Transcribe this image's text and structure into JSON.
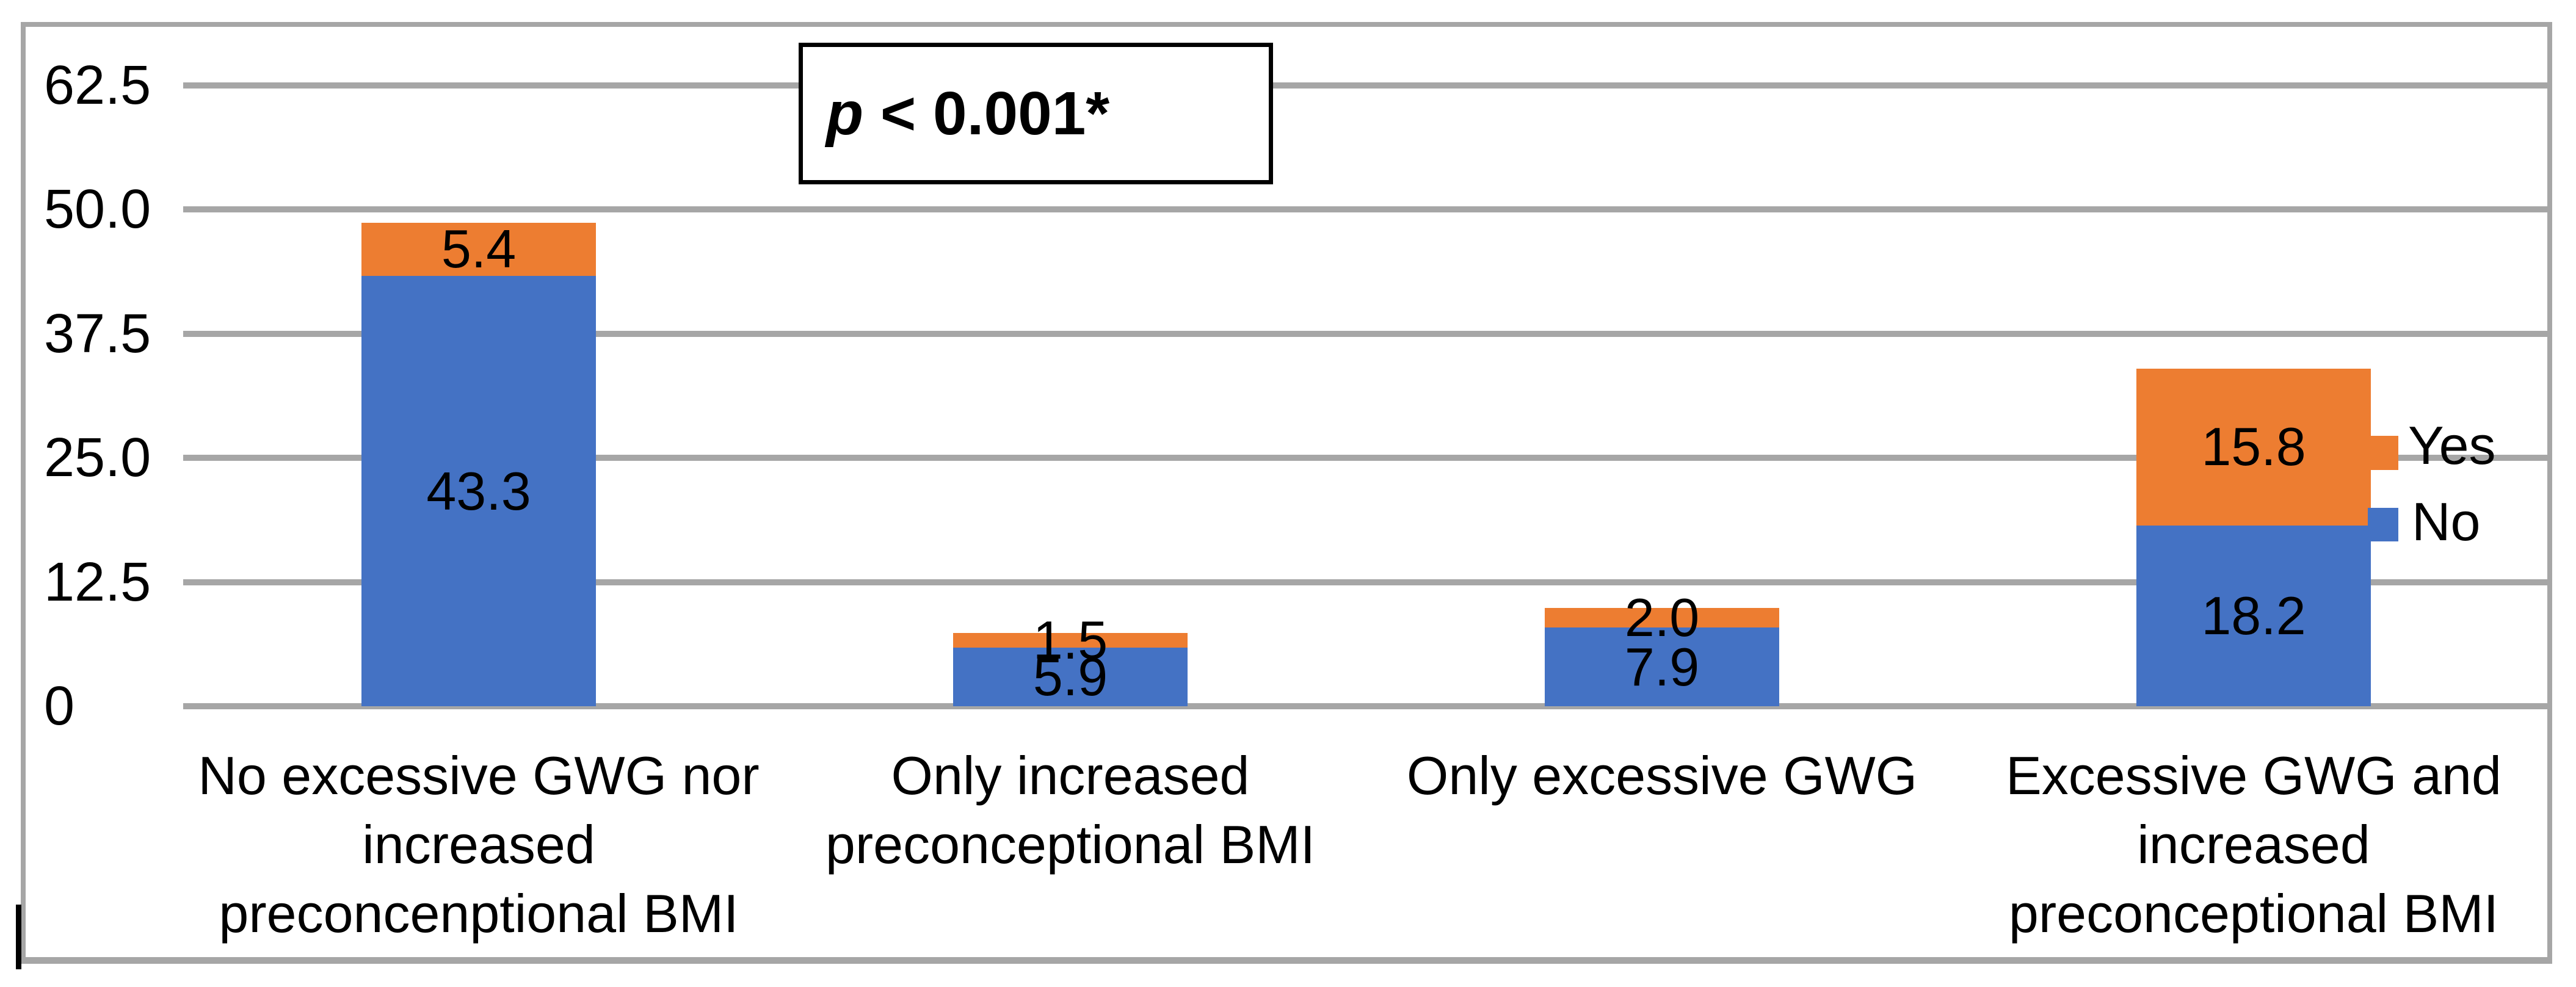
{
  "chart_data": {
    "type": "bar",
    "stacked": true,
    "title": "",
    "annotation": "p < 0.001*",
    "categories": [
      "No excessive GWG nor increased preconcenptional BMI",
      "Only increased preconceptional BMI",
      "Only excessive GWG",
      "Excessive GWG and increased preconceptional BMI"
    ],
    "categories_lines": [
      [
        "No excessive GWG nor",
        "increased",
        "preconcenptional BMI"
      ],
      [
        "Only increased",
        "preconceptional BMI"
      ],
      [
        "Only excessive GWG"
      ],
      [
        "Excessive GWG and",
        "increased",
        "preconceptional BMI"
      ]
    ],
    "series": [
      {
        "name": "No",
        "color": "#4472C4",
        "values": [
          43.3,
          5.9,
          7.9,
          18.2
        ],
        "labels": [
          "43.3",
          "5.9",
          "7.9",
          "18.2"
        ]
      },
      {
        "name": "Yes",
        "color": "#ED7D31",
        "values": [
          5.4,
          1.5,
          2.0,
          15.8
        ],
        "labels": [
          "5.4",
          "1.5",
          "2.0",
          "15.8"
        ]
      }
    ],
    "y_axis": {
      "ticks": [
        {
          "label": "62.5",
          "value": 62.5
        },
        {
          "label": "50.0",
          "value": 50
        },
        {
          "label": "37.5",
          "value": 37.5
        },
        {
          "label": "25.0",
          "value": 25
        },
        {
          "label": "12.5",
          "value": 12.5
        },
        {
          "label": "0",
          "value": 0
        }
      ],
      "range": [
        0,
        68.5
      ]
    },
    "legend": {
      "position": "right-middle",
      "entries": [
        {
          "label": "Yes",
          "color": "#ED7D31"
        },
        {
          "label": "No",
          "color": "#4472C4"
        }
      ]
    },
    "grid": true,
    "gridline_color": "#a6a6a6"
  },
  "annotation": {
    "p": "p",
    "rest": " < 0.001*"
  },
  "legend": {
    "yes": "Yes",
    "no": "No"
  },
  "colors": {
    "no_blue": "#4472C4",
    "yes_orange": "#ED7D31",
    "gridline": "#a6a6a6",
    "frame": "#a6a6a6",
    "text": "#000000"
  }
}
